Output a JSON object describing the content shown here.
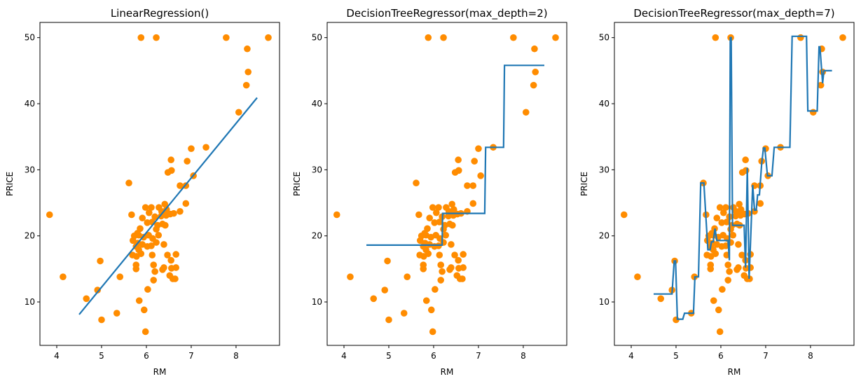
{
  "chart_data": {
    "type": "scatter",
    "scatter_color": "#ff8c00",
    "line_color": "#1f77b4",
    "scatter": {
      "x": [
        3.84,
        4.14,
        4.66,
        4.91,
        4.97,
        5.0,
        5.41,
        5.34,
        5.61,
        5.88,
        6.22,
        7.78,
        8.72,
        8.25,
        8.27,
        8.23,
        8.06,
        7.0,
        7.33,
        6.91,
        6.55,
        6.56,
        6.48,
        6.75,
        6.88,
        7.05,
        6.88,
        6.75,
        6.61,
        5.67,
        5.98,
        6.11,
        6.28,
        6.34,
        6.41,
        6.45,
        6.53,
        6.44,
        6.33,
        6.19,
        6.06,
        5.91,
        6.02,
        6.13,
        6.25,
        6.36,
        6.42,
        6.22,
        5.86,
        5.8,
        5.73,
        5.83,
        5.94,
        6.05,
        6.14,
        6.27,
        5.7,
        5.81,
        5.91,
        6.02,
        6.11,
        5.77,
        5.83,
        6.22,
        6.39,
        5.69,
        5.78,
        5.88,
        6.13,
        6.47,
        6.66,
        6.55,
        5.77,
        5.77,
        6.16,
        6.19,
        6.36,
        6.39,
        6.52,
        6.59,
        6.66,
        6.16,
        6.03,
        5.84,
        5.95,
        5.98,
        6.56,
        6.64
      ],
      "y": [
        23.2,
        13.8,
        10.5,
        11.8,
        16.2,
        7.3,
        13.8,
        8.3,
        28.0,
        50,
        50,
        50,
        50,
        48.3,
        44.8,
        42.8,
        38.7,
        33.2,
        33.4,
        31.3,
        31.5,
        29.9,
        29.6,
        27.6,
        27.6,
        29.1,
        24.9,
        23.7,
        23.4,
        23.2,
        24.3,
        24.3,
        24.3,
        23.7,
        24.8,
        24.0,
        23.3,
        23.1,
        23.0,
        22.9,
        23.5,
        22.7,
        22.0,
        22.1,
        21.6,
        21.8,
        21.6,
        21.0,
        21.1,
        20.4,
        20.0,
        20.1,
        19.8,
        20.1,
        19.6,
        20.1,
        19.3,
        18.9,
        18.7,
        18.4,
        18.5,
        18.4,
        17.9,
        19.0,
        18.7,
        17.1,
        16.9,
        17.3,
        17.1,
        17.1,
        17.2,
        16.3,
        15.6,
        15.0,
        15.6,
        14.6,
        14.9,
        15.2,
        14.0,
        13.5,
        15.2,
        13.3,
        11.9,
        10.2,
        8.8,
        5.5,
        15.1,
        13.5
      ]
    },
    "subplots": [
      {
        "title": "LinearRegression()",
        "xlabel": "RM",
        "ylabel": "PRICE",
        "xlim": [
          3.625,
          8.97
        ],
        "ylim": [
          3.43,
          52.3
        ],
        "xticks": [
          4,
          5,
          6,
          7,
          8
        ],
        "yticks": [
          10,
          20,
          30,
          40,
          50
        ],
        "line": {
          "x": [
            4.5,
            8.47
          ],
          "y": [
            8.1,
            40.9
          ]
        }
      },
      {
        "title": "DecisionTreeRegressor(max_depth=2)",
        "xlabel": "RM",
        "ylabel": "PRICE",
        "xlim": [
          3.625,
          8.97
        ],
        "ylim": [
          3.43,
          52.3
        ],
        "xticks": [
          4,
          5,
          6,
          7,
          8
        ],
        "yticks": [
          10,
          20,
          30,
          40,
          50
        ],
        "line": {
          "x": [
            4.5,
            6.19,
            6.2,
            7.14,
            7.16,
            7.56,
            7.58,
            8.47
          ],
          "y": [
            18.6,
            18.6,
            23.4,
            23.4,
            33.4,
            33.4,
            45.8,
            45.8
          ]
        }
      },
      {
        "title": "DecisionTreeRegressor(max_depth=7)",
        "xlabel": "RM",
        "ylabel": "PRICE",
        "xlim": [
          3.625,
          8.97
        ],
        "ylim": [
          3.43,
          52.3
        ],
        "xticks": [
          4,
          5,
          6,
          7,
          8
        ],
        "yticks": [
          10,
          20,
          30,
          40,
          50
        ],
        "line": {
          "x": [
            4.5,
            4.91,
            4.96,
            4.99,
            5.03,
            5.15,
            5.19,
            5.39,
            5.42,
            5.5,
            5.55,
            5.62,
            5.71,
            5.76,
            5.79,
            5.83,
            5.87,
            5.91,
            6.16,
            6.19,
            6.21,
            6.23,
            6.26,
            6.52,
            6.55,
            6.59,
            6.63,
            6.71,
            6.75,
            6.79,
            6.82,
            6.86,
            6.91,
            6.95,
            6.98,
            7.04,
            7.14,
            7.19,
            7.54,
            7.59,
            7.91,
            7.94,
            8.15,
            8.19,
            8.21,
            8.27,
            8.3,
            8.48
          ],
          "y": [
            11.2,
            11.2,
            16.2,
            16.2,
            7.4,
            7.4,
            8.3,
            8.3,
            13.8,
            13.8,
            28.0,
            28.0,
            17.9,
            17.9,
            19.1,
            19.1,
            21.1,
            19.3,
            19.3,
            16.3,
            50,
            50,
            21.6,
            21.6,
            15.2,
            30.3,
            13.5,
            27.7,
            23.9,
            23.9,
            26.2,
            26.2,
            30.9,
            33.3,
            33.3,
            29.1,
            29.1,
            33.4,
            33.4,
            50.2,
            50.2,
            38.9,
            38.9,
            48.6,
            48.6,
            43.1,
            45.0,
            45.0
          ]
        }
      }
    ]
  }
}
